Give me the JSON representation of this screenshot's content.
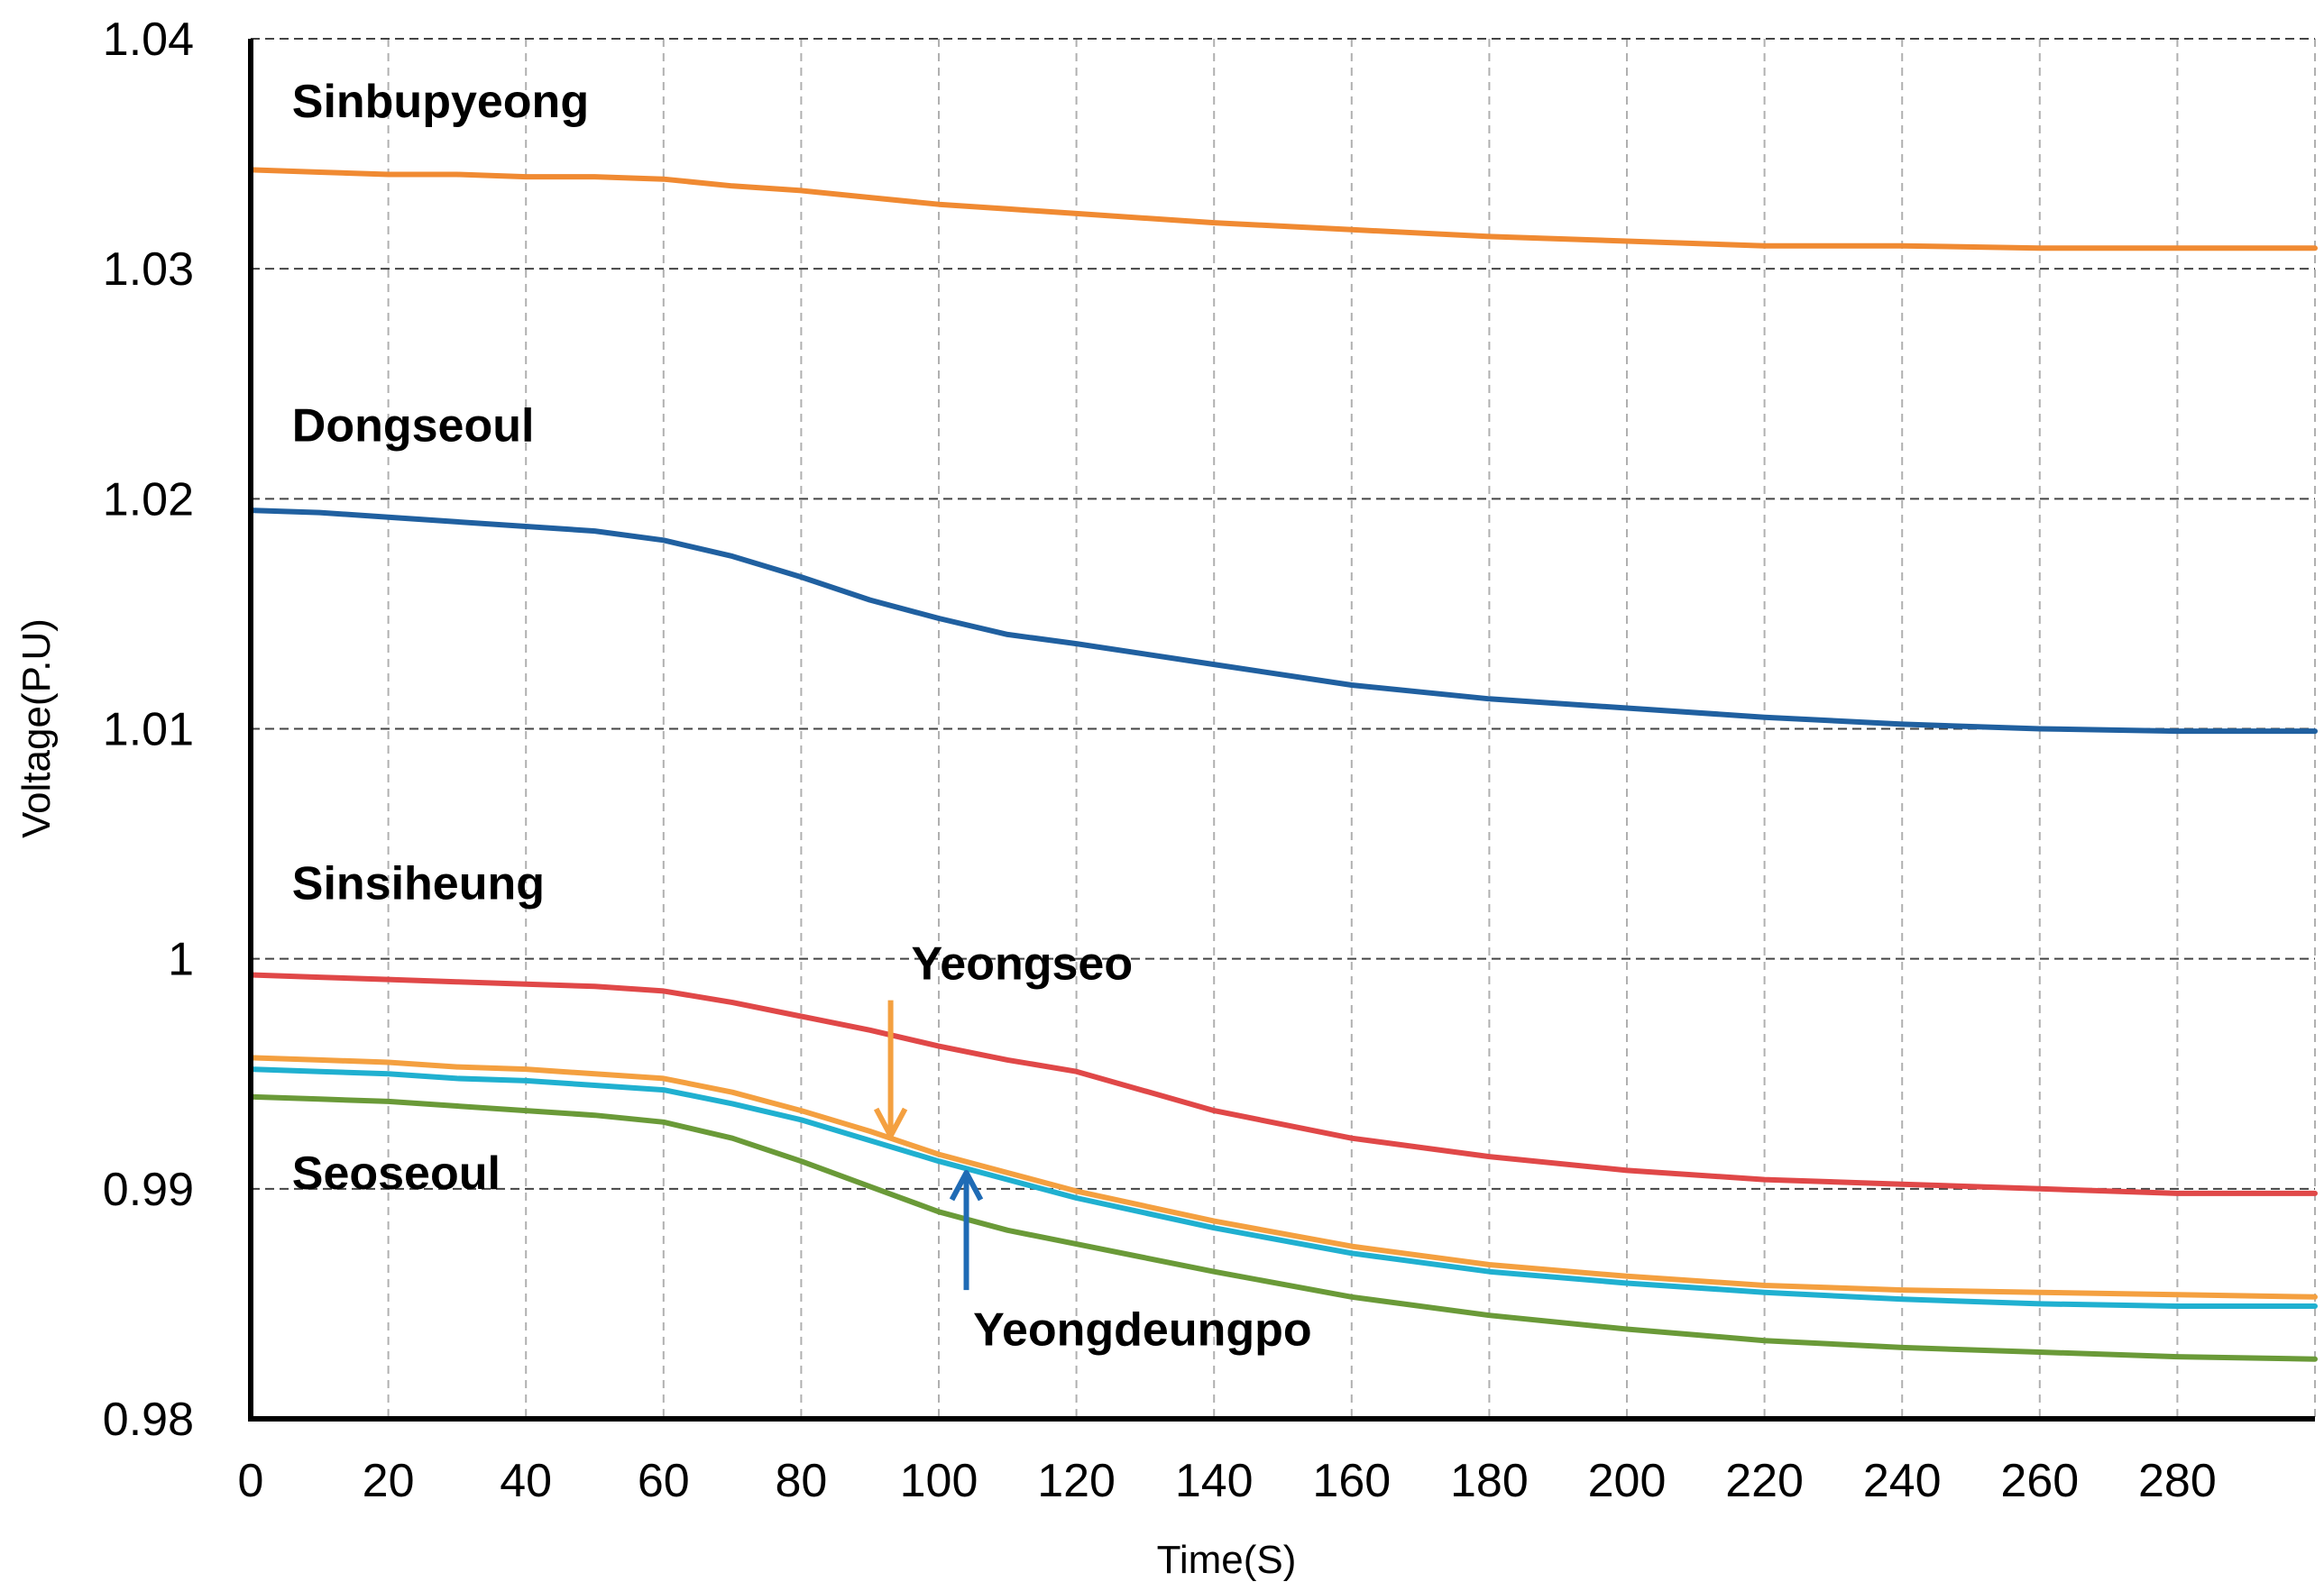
{
  "chart_data": {
    "type": "line",
    "title": "",
    "xlabel": "Time(S)",
    "ylabel": "Voltage(P.U)",
    "xlim": [
      0,
      300
    ],
    "ylim": [
      0.98,
      1.04
    ],
    "grid": true,
    "x_ticks": [
      0,
      20,
      40,
      60,
      80,
      100,
      120,
      140,
      160,
      180,
      200,
      220,
      240,
      260,
      280
    ],
    "x_tick_labels": [
      "0",
      "20",
      "40",
      "60",
      "80",
      "100",
      "120",
      "140",
      "160",
      "180",
      "200",
      "220",
      "240",
      "260",
      "280"
    ],
    "y_ticks": [
      0.98,
      0.99,
      1.0,
      1.01,
      1.02,
      1.03,
      1.04
    ],
    "y_tick_labels": [
      "0.98",
      "0.99",
      "1",
      "1.01",
      "1.02",
      "1.03",
      "1.04"
    ],
    "x": [
      0,
      10,
      20,
      30,
      40,
      50,
      60,
      70,
      80,
      90,
      100,
      110,
      120,
      140,
      160,
      180,
      200,
      220,
      240,
      260,
      280,
      300
    ],
    "series": [
      {
        "name": "Sinbupyeong",
        "color": "#f08a32",
        "values": [
          1.0343,
          1.0342,
          1.0341,
          1.0341,
          1.034,
          1.034,
          1.0339,
          1.0336,
          1.0334,
          1.0331,
          1.0328,
          1.0326,
          1.0324,
          1.032,
          1.0317,
          1.0314,
          1.0312,
          1.031,
          1.031,
          1.0309,
          1.0309,
          1.0309
        ]
      },
      {
        "name": "Dongseoul",
        "color": "#2060a0",
        "values": [
          1.0195,
          1.0194,
          1.0192,
          1.019,
          1.0188,
          1.0186,
          1.0182,
          1.0175,
          1.0166,
          1.0156,
          1.0148,
          1.0141,
          1.0137,
          1.0128,
          1.0119,
          1.0113,
          1.0109,
          1.0105,
          1.0102,
          1.01,
          1.0099,
          1.0099
        ]
      },
      {
        "name": "Sinsiheung",
        "color": "#e04848",
        "values": [
          0.9993,
          0.9992,
          0.9991,
          0.999,
          0.9989,
          0.9988,
          0.9986,
          0.9981,
          0.9975,
          0.9969,
          0.9962,
          0.9956,
          0.9951,
          0.9934,
          0.9922,
          0.9914,
          0.9908,
          0.9904,
          0.9902,
          0.99,
          0.9898,
          0.9898
        ]
      },
      {
        "name": "Yeongseo",
        "color": "#f4a040",
        "values": [
          0.9957,
          0.9956,
          0.9955,
          0.9953,
          0.9952,
          0.995,
          0.9948,
          0.9942,
          0.9934,
          0.9925,
          0.9915,
          0.9907,
          0.9899,
          0.9886,
          0.9875,
          0.9867,
          0.9862,
          0.9858,
          0.9856,
          0.9855,
          0.9854,
          0.9853
        ]
      },
      {
        "name": "Yeongdeungpo",
        "color": "#20b0d0",
        "values": [
          0.9952,
          0.9951,
          0.995,
          0.9948,
          0.9947,
          0.9945,
          0.9943,
          0.9937,
          0.993,
          0.9921,
          0.9912,
          0.9904,
          0.9896,
          0.9883,
          0.9872,
          0.9864,
          0.9859,
          0.9855,
          0.9852,
          0.985,
          0.9849,
          0.9849
        ]
      },
      {
        "name": "Seoseoul",
        "color": "#6a9a38",
        "values": [
          0.994,
          0.9939,
          0.9938,
          0.9936,
          0.9934,
          0.9932,
          0.9929,
          0.9922,
          0.9912,
          0.9901,
          0.989,
          0.9882,
          0.9876,
          0.9864,
          0.9853,
          0.9845,
          0.9839,
          0.9834,
          0.9831,
          0.9829,
          0.9827,
          0.9826
        ]
      }
    ],
    "annotations": [
      {
        "label": "Sinbupyeong",
        "series": "Sinbupyeong",
        "x": 6,
        "y": 1.0366
      },
      {
        "label": "Dongseoul",
        "series": "Dongseoul",
        "x": 6,
        "y": 1.0225
      },
      {
        "label": "Sinsiheung",
        "series": "Sinsiheung",
        "x": 6,
        "y": 1.0026
      },
      {
        "label": "Yeongseo",
        "series": "Yeongseo",
        "x": 96,
        "y": 0.9991,
        "arrow_from": [
          93,
          0.9982
        ],
        "arrow_to": [
          93,
          0.9923
        ],
        "arrow_color": "#f4a040"
      },
      {
        "label": "Seoseoul",
        "series": "Seoseoul",
        "x": 6,
        "y": 0.99
      },
      {
        "label": "Yeongdeungpo",
        "series": "Yeongdeungpo",
        "x": 105,
        "y": 0.9832,
        "arrow_from": [
          104,
          0.9856
        ],
        "arrow_to": [
          104,
          0.9907
        ],
        "arrow_color": "#1f6bb5"
      }
    ]
  }
}
